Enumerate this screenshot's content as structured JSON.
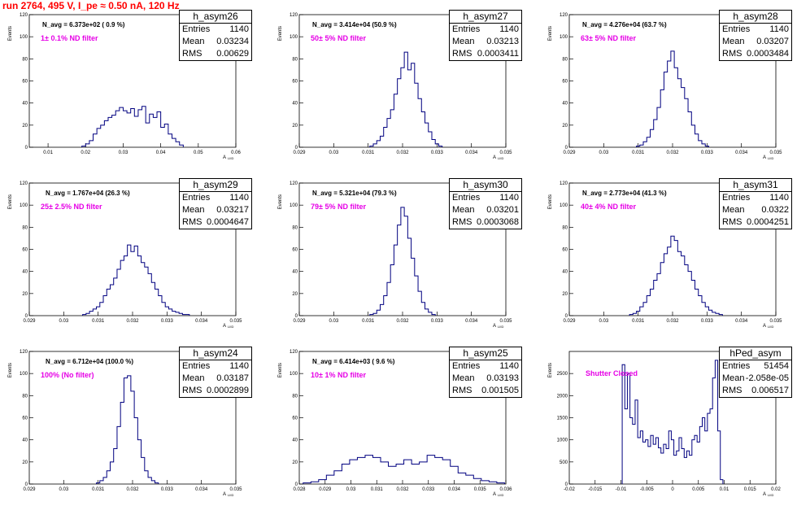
{
  "run_title": "run 2764,   495 V, I_pe ≈ 0.50 nA, 120 Hz",
  "y_axis_label": "Events",
  "x_axis_label": "A",
  "x_axis_label_sub": "LIID",
  "stat_labels": {
    "entries": "Entries",
    "mean": "Mean",
    "rms": "RMS"
  },
  "colors": {
    "histogram": "#000080",
    "title": "#ff0000",
    "filter_label": "#e600e6",
    "frame": "#000000"
  },
  "chart_data": [
    {
      "type": "bar",
      "name": "h_asym26",
      "navg_text": "N_avg = 6.373e+02 ( 0.9 %)",
      "filter_text": "1± 0.1% ND filter",
      "entries": "1140",
      "mean": "0.03234",
      "rms": "0.00629",
      "xlim": [
        0.005,
        0.06
      ],
      "ylim": [
        0,
        120
      ],
      "x_ticks": [
        "0.01",
        "0.02",
        "0.03",
        "0.04",
        "0.05",
        "0.06"
      ],
      "y_ticks": [
        "0",
        "20",
        "40",
        "60",
        "80",
        "100",
        "120"
      ],
      "x": [
        0.0195,
        0.0205,
        0.0215,
        0.0225,
        0.0235,
        0.0245,
        0.0255,
        0.0265,
        0.0275,
        0.0285,
        0.0295,
        0.0305,
        0.0315,
        0.0325,
        0.0335,
        0.0345,
        0.0355,
        0.0365,
        0.0375,
        0.0385,
        0.0395,
        0.0405,
        0.0415,
        0.0425,
        0.0435,
        0.0445,
        0.0455
      ],
      "values": [
        1,
        3,
        6,
        12,
        17,
        20,
        24,
        27,
        29,
        33,
        36,
        33,
        31,
        35,
        28,
        34,
        37,
        22,
        30,
        27,
        32,
        18,
        21,
        12,
        8,
        5,
        2
      ]
    },
    {
      "type": "bar",
      "name": "h_asym27",
      "navg_text": "N_avg = 3.414e+04 (50.9 %)",
      "filter_text": "50± 5% ND filter",
      "entries": "1140",
      "mean": "0.03213",
      "rms": "0.0003411",
      "xlim": [
        0.029,
        0.035
      ],
      "ylim": [
        0,
        120
      ],
      "x_ticks": [
        "0.029",
        "0.03",
        "0.031",
        "0.032",
        "0.033",
        "0.034",
        "0.035"
      ],
      "y_ticks": [
        "0",
        "20",
        "40",
        "60",
        "80",
        "100",
        "120"
      ],
      "x": [
        0.0311,
        0.0312,
        0.0313,
        0.0314,
        0.0315,
        0.0316,
        0.0317,
        0.0318,
        0.0319,
        0.032,
        0.0321,
        0.0322,
        0.0323,
        0.0324,
        0.0325,
        0.0326,
        0.0327,
        0.0328,
        0.0329,
        0.033,
        0.0331
      ],
      "values": [
        1,
        3,
        6,
        10,
        18,
        26,
        34,
        48,
        62,
        72,
        86,
        70,
        76,
        58,
        44,
        32,
        22,
        14,
        7,
        3,
        1
      ]
    },
    {
      "type": "bar",
      "name": "h_asym28",
      "navg_text": "N_avg = 4.276e+04 (63.7 %)",
      "filter_text": "63± 5% ND filter",
      "entries": "1140",
      "mean": "0.03207",
      "rms": "0.0003484",
      "xlim": [
        0.029,
        0.035
      ],
      "ylim": [
        0,
        120
      ],
      "x_ticks": [
        "0.029",
        "0.03",
        "0.031",
        "0.032",
        "0.033",
        "0.034",
        "0.035"
      ],
      "y_ticks": [
        "0",
        "20",
        "40",
        "60",
        "80",
        "100",
        "120"
      ],
      "x": [
        0.031,
        0.0311,
        0.0312,
        0.0313,
        0.0314,
        0.0315,
        0.0316,
        0.0317,
        0.0318,
        0.0319,
        0.032,
        0.0321,
        0.0322,
        0.0323,
        0.0324,
        0.0325,
        0.0326,
        0.0327,
        0.0328,
        0.0329,
        0.033
      ],
      "values": [
        1,
        2,
        5,
        9,
        16,
        25,
        36,
        52,
        68,
        78,
        87,
        72,
        62,
        54,
        44,
        32,
        20,
        12,
        6,
        3,
        1
      ]
    },
    {
      "type": "bar",
      "name": "h_asym29",
      "navg_text": "N_avg = 1.767e+04 (26.3 %)",
      "filter_text": "25± 2.5% ND filter",
      "entries": "1140",
      "mean": "0.03217",
      "rms": "0.0004647",
      "xlim": [
        0.029,
        0.035
      ],
      "ylim": [
        0,
        120
      ],
      "x_ticks": [
        "0.029",
        "0.03",
        "0.031",
        "0.032",
        "0.033",
        "0.034",
        "0.035"
      ],
      "y_ticks": [
        "0",
        "20",
        "40",
        "60",
        "80",
        "100",
        "120"
      ],
      "x": [
        0.0306,
        0.0307,
        0.0308,
        0.0309,
        0.031,
        0.0311,
        0.0312,
        0.0313,
        0.0314,
        0.0315,
        0.0316,
        0.0317,
        0.0318,
        0.0319,
        0.032,
        0.0321,
        0.0322,
        0.0323,
        0.0324,
        0.0325,
        0.0326,
        0.0327,
        0.0328,
        0.0329,
        0.033,
        0.0331,
        0.0332,
        0.0333,
        0.0334,
        0.0335,
        0.0336
      ],
      "values": [
        1,
        2,
        4,
        6,
        8,
        12,
        18,
        24,
        28,
        34,
        42,
        50,
        54,
        64,
        58,
        63,
        54,
        48,
        44,
        38,
        30,
        24,
        18,
        12,
        8,
        6,
        4,
        3,
        2,
        1,
        1
      ]
    },
    {
      "type": "bar",
      "name": "h_asym30",
      "navg_text": "N_avg = 5.321e+04 (79.3 %)",
      "filter_text": "79± 5% ND filter",
      "entries": "1140",
      "mean": "0.03201",
      "rms": "0.0003068",
      "xlim": [
        0.029,
        0.035
      ],
      "ylim": [
        0,
        120
      ],
      "x_ticks": [
        "0.029",
        "0.03",
        "0.031",
        "0.032",
        "0.033",
        "0.034",
        "0.035"
      ],
      "y_ticks": [
        "0",
        "20",
        "40",
        "60",
        "80",
        "100",
        "120"
      ],
      "x": [
        0.0311,
        0.0312,
        0.0313,
        0.0314,
        0.0315,
        0.0316,
        0.0317,
        0.0318,
        0.0319,
        0.032,
        0.0321,
        0.0322,
        0.0323,
        0.0324,
        0.0325,
        0.0326,
        0.0327,
        0.0328,
        0.0329
      ],
      "values": [
        1,
        2,
        5,
        10,
        18,
        30,
        46,
        64,
        82,
        98,
        90,
        70,
        52,
        36,
        22,
        12,
        6,
        3,
        1
      ]
    },
    {
      "type": "bar",
      "name": "h_asym31",
      "navg_text": "N_avg = 2.773e+04 (41.3 %)",
      "filter_text": "40± 4% ND filter",
      "entries": "1140",
      "mean": "0.0322",
      "rms": "0.0004251",
      "xlim": [
        0.029,
        0.035
      ],
      "ylim": [
        0,
        120
      ],
      "x_ticks": [
        "0.029",
        "0.03",
        "0.031",
        "0.032",
        "0.033",
        "0.034",
        "0.035"
      ],
      "y_ticks": [
        "0",
        "20",
        "40",
        "60",
        "80",
        "100",
        "120"
      ],
      "x": [
        0.0308,
        0.0309,
        0.031,
        0.0311,
        0.0312,
        0.0313,
        0.0314,
        0.0315,
        0.0316,
        0.0317,
        0.0318,
        0.0319,
        0.032,
        0.0321,
        0.0322,
        0.0323,
        0.0324,
        0.0325,
        0.0326,
        0.0327,
        0.0328,
        0.0329,
        0.033,
        0.0331,
        0.0332,
        0.0333,
        0.0334
      ],
      "values": [
        1,
        2,
        4,
        8,
        12,
        18,
        24,
        32,
        38,
        48,
        56,
        62,
        72,
        68,
        58,
        54,
        46,
        40,
        32,
        24,
        18,
        12,
        8,
        5,
        3,
        2,
        1
      ]
    },
    {
      "type": "bar",
      "name": "h_asym24",
      "navg_text": "N_avg = 6.712e+04 (100.0 %)",
      "filter_text": "100% (No filter)",
      "entries": "1140",
      "mean": "0.03187",
      "rms": "0.0002899",
      "xlim": [
        0.029,
        0.035
      ],
      "ylim": [
        0,
        120
      ],
      "x_ticks": [
        "0.029",
        "0.03",
        "0.031",
        "0.032",
        "0.033",
        "0.034",
        "0.035"
      ],
      "y_ticks": [
        "0",
        "20",
        "40",
        "60",
        "80",
        "100",
        "120"
      ],
      "x": [
        0.031,
        0.0311,
        0.0312,
        0.0313,
        0.0314,
        0.0315,
        0.0316,
        0.0317,
        0.0318,
        0.0319,
        0.032,
        0.0321,
        0.0322,
        0.0323,
        0.0324,
        0.0325,
        0.0326,
        0.0327
      ],
      "values": [
        1,
        3,
        6,
        12,
        20,
        32,
        52,
        74,
        96,
        98,
        84,
        60,
        40,
        24,
        12,
        6,
        3,
        1
      ]
    },
    {
      "type": "bar",
      "name": "h_asym25",
      "navg_text": "N_avg = 6.414e+03 ( 9.6 %)",
      "filter_text": "10± 1% ND filter",
      "entries": "1140",
      "mean": "0.03193",
      "rms": "0.001505",
      "xlim": [
        0.028,
        0.036
      ],
      "ylim": [
        0,
        120
      ],
      "x_ticks": [
        "0.028",
        "0.029",
        "0.03",
        "0.031",
        "0.032",
        "0.033",
        "0.034",
        "0.035",
        "0.036"
      ],
      "y_ticks": [
        "0",
        "20",
        "40",
        "60",
        "80",
        "100",
        "120"
      ],
      "x": [
        0.0283,
        0.0286,
        0.0289,
        0.0292,
        0.0295,
        0.0298,
        0.0301,
        0.0304,
        0.0307,
        0.031,
        0.0313,
        0.0316,
        0.0319,
        0.0322,
        0.0325,
        0.0328,
        0.0331,
        0.0334,
        0.0337,
        0.034,
        0.0343,
        0.0346,
        0.0349,
        0.0352,
        0.0355,
        0.0358
      ],
      "values": [
        1,
        2,
        4,
        8,
        12,
        18,
        22,
        24,
        26,
        24,
        20,
        16,
        18,
        22,
        18,
        20,
        26,
        24,
        22,
        16,
        10,
        8,
        5,
        3,
        2,
        1
      ]
    },
    {
      "type": "bar",
      "name": "hPed_asym",
      "navg_text": "",
      "filter_text": "Shutter Closed",
      "entries": "51454",
      "mean": "-2.058e-05",
      "rms": "0.006517",
      "xlim": [
        -0.02,
        0.02
      ],
      "ylim": [
        0,
        3000
      ],
      "x_ticks": [
        "-0.02",
        "-0.015",
        "-0.01",
        "-0.005",
        "0",
        "0.005",
        "0.01",
        "0.015",
        "0.02"
      ],
      "y_ticks": [
        "0",
        "500",
        "1000",
        "1500",
        "2000",
        "2500"
      ],
      "x": [
        -0.0095,
        -0.009,
        -0.0085,
        -0.008,
        -0.0075,
        -0.007,
        -0.0065,
        -0.006,
        -0.0055,
        -0.005,
        -0.0045,
        -0.004,
        -0.0035,
        -0.003,
        -0.0025,
        -0.002,
        -0.0015,
        -0.001,
        -0.0005,
        0.0,
        0.0005,
        0.001,
        0.0015,
        0.002,
        0.0025,
        0.003,
        0.0035,
        0.004,
        0.0045,
        0.005,
        0.0055,
        0.006,
        0.0065,
        0.007,
        0.0075,
        0.008,
        0.0085,
        0.009,
        0.0095
      ],
      "values": [
        2700,
        1700,
        2500,
        1500,
        1350,
        1900,
        1050,
        1200,
        950,
        1000,
        850,
        1100,
        900,
        1050,
        820,
        700,
        900,
        800,
        1200,
        1000,
        650,
        750,
        1050,
        800,
        600,
        750,
        650,
        1000,
        1100,
        950,
        1300,
        1500,
        1200,
        1600,
        1700,
        2400,
        2800,
        1200,
        100
      ]
    }
  ]
}
